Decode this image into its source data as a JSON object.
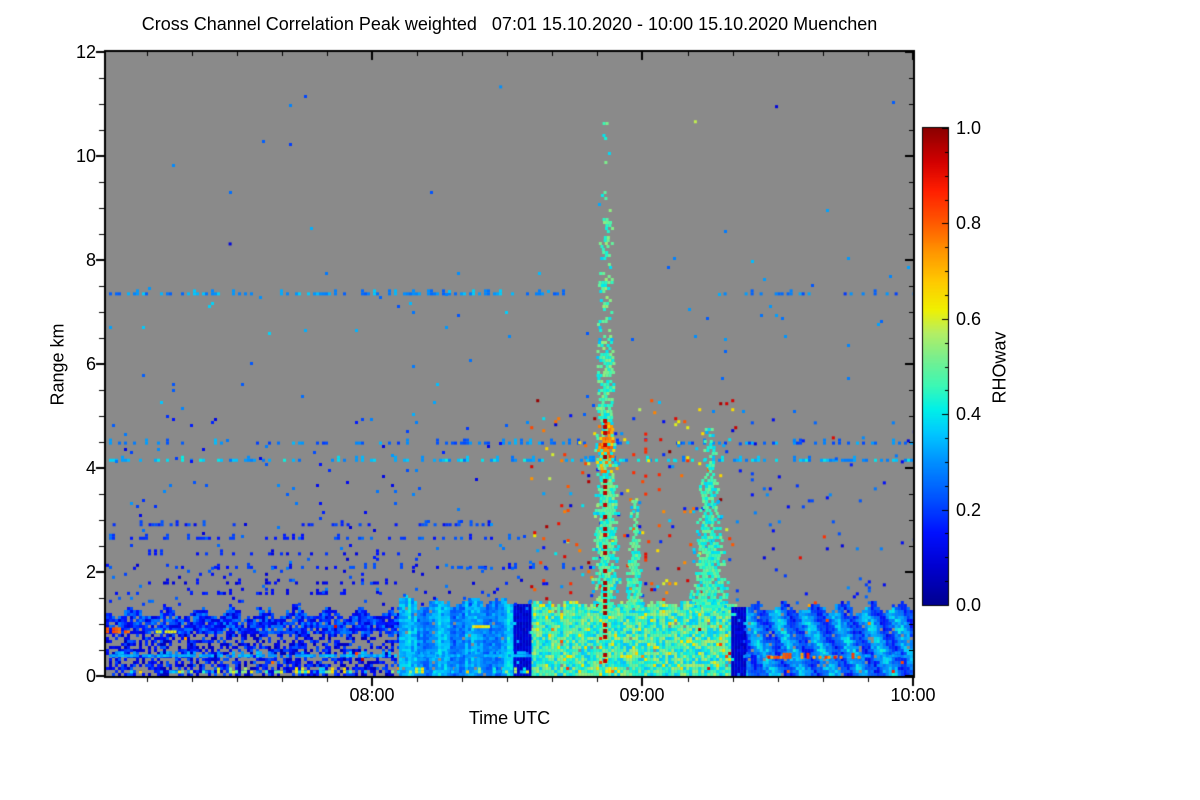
{
  "chart_data": {
    "type": "heatmap",
    "title": "Cross Channel Correlation Peak weighted   07:01 15.10.2020 - 10:00 15.10.2020 Muenchen",
    "xlabel": "Time UTC",
    "ylabel": "Range km",
    "time_start_utc": "07:01",
    "time_end_utc": "10:00",
    "date": "15.10.2020",
    "station": "Muenchen",
    "x_domain_hours": [
      7.0167,
      10.0
    ],
    "y_domain_km": [
      0,
      12
    ],
    "x_ticks": [
      {
        "t": 8.0,
        "label": "08:00"
      },
      {
        "t": 9.0,
        "label": "09:00"
      },
      {
        "t": 10.0,
        "label": "10:00"
      }
    ],
    "x_minor_step_hours": 0.1666667,
    "y_ticks": [
      {
        "v": 0,
        "label": "0"
      },
      {
        "v": 2,
        "label": "2"
      },
      {
        "v": 4,
        "label": "4"
      },
      {
        "v": 6,
        "label": "6"
      },
      {
        "v": 8,
        "label": "8"
      },
      {
        "v": 10,
        "label": "10"
      },
      {
        "v": 12,
        "label": "12"
      }
    ],
    "y_minor_step": 0.5,
    "grid": false,
    "no_data_color": "#8a8a8a",
    "frame_color": "#000000",
    "seed": 1337,
    "colorbar": {
      "label": "RHOwav",
      "min": 0.0,
      "max": 1.0,
      "ticks": [
        {
          "v": 0.0,
          "label": "0.0"
        },
        {
          "v": 0.2,
          "label": "0.2"
        },
        {
          "v": 0.4,
          "label": "0.4"
        },
        {
          "v": 0.6,
          "label": "0.6"
        },
        {
          "v": 0.8,
          "label": "0.8"
        },
        {
          "v": 1.0,
          "label": "1.0"
        }
      ],
      "minor_step": 0.05,
      "stops": [
        [
          0.0,
          "#000090"
        ],
        [
          0.08,
          "#0000D0"
        ],
        [
          0.15,
          "#0010FF"
        ],
        [
          0.22,
          "#0050FF"
        ],
        [
          0.3,
          "#0090FF"
        ],
        [
          0.36,
          "#00C8FF"
        ],
        [
          0.41,
          "#00F0E8"
        ],
        [
          0.46,
          "#3CF8B4"
        ],
        [
          0.52,
          "#7CEE8C"
        ],
        [
          0.57,
          "#B4EE64"
        ],
        [
          0.62,
          "#F0F000"
        ],
        [
          0.68,
          "#FFC800"
        ],
        [
          0.74,
          "#FF9600"
        ],
        [
          0.8,
          "#FF5A00"
        ],
        [
          0.87,
          "#FF1E00"
        ],
        [
          0.93,
          "#D20000"
        ],
        [
          1.0,
          "#8C0000"
        ]
      ]
    },
    "features": [
      {
        "kind": "layer",
        "name": "boundary-layer-early-dark-blue",
        "style": "patchy",
        "t": [
          7.0167,
          8.1
        ],
        "hTop": 1.2,
        "topAmp": 0.1,
        "waves": 9,
        "density": 0.88,
        "lowSplit": 0.78,
        "lowFactor": 0.58,
        "val": 0.14,
        "spread": 0.2,
        "hotFrac": 0.004
      },
      {
        "kind": "layer",
        "name": "boundary-layer-fan-cyan",
        "style": "fan",
        "t": [
          8.1,
          8.585
        ],
        "hTop": 1.4,
        "topAmp": 0.07,
        "waves": 4,
        "density": 0.97,
        "val": 0.31,
        "spread": 0.1,
        "hotFrac": 0.002
      },
      {
        "kind": "layer",
        "name": "boundary-layer-convective-green",
        "style": "speckle",
        "t": [
          8.585,
          9.345
        ],
        "hTop": 1.38,
        "topAmp": 0.05,
        "waves": 7,
        "density": 0.99,
        "val": 0.46,
        "spread": 0.22,
        "hotFrac": 0.012,
        "warmFrac": 0.05,
        "warmVal": 0.63
      },
      {
        "kind": "layer",
        "name": "boundary-layer-late-wavy-blue",
        "style": "wavy",
        "t": [
          9.345,
          10.0
        ],
        "hTop": 1.3,
        "topAmp": 0.09,
        "waves": 6,
        "density": 0.95,
        "val": 0.27,
        "spread": 0.14,
        "hotFrac": 0.003
      },
      {
        "kind": "column",
        "name": "dark-edge-0835",
        "t": [
          8.523,
          8.585
        ],
        "h": [
          0,
          1.36
        ],
        "val": 0.08,
        "spread": 0.06,
        "density": 0.97
      },
      {
        "kind": "column",
        "name": "dark-edge-0920",
        "t": [
          9.328,
          9.378
        ],
        "h": [
          0,
          1.3
        ],
        "val": 0.08,
        "spread": 0.06,
        "density": 0.92
      },
      {
        "kind": "row",
        "h": 7.32,
        "t": [
          7.0167,
          8.72
        ],
        "val": 0.3,
        "spread": 0.14,
        "density": 0.45
      },
      {
        "kind": "row",
        "h": 7.32,
        "t": [
          9.3,
          10.0
        ],
        "val": 0.26,
        "spread": 0.14,
        "density": 0.36
      },
      {
        "kind": "row",
        "h": 4.45,
        "t": [
          7.0167,
          10.0
        ],
        "val": 0.27,
        "spread": 0.16,
        "density": 0.3
      },
      {
        "kind": "row",
        "h": 4.12,
        "t": [
          7.0167,
          10.0
        ],
        "val": 0.34,
        "spread": 0.16,
        "density": 0.46
      },
      {
        "kind": "row",
        "h": 2.88,
        "t": [
          7.03,
          8.45
        ],
        "val": 0.18,
        "spread": 0.12,
        "density": 0.28
      },
      {
        "kind": "row",
        "h": 2.62,
        "t": [
          7.0167,
          8.62
        ],
        "val": 0.21,
        "spread": 0.14,
        "density": 0.3
      },
      {
        "kind": "row",
        "h": 2.32,
        "t": [
          7.05,
          8.3
        ],
        "val": 0.15,
        "spread": 0.1,
        "density": 0.17
      },
      {
        "kind": "row",
        "h": 2.06,
        "t": [
          7.0167,
          9.0
        ],
        "val": 0.18,
        "spread": 0.12,
        "density": 0.2
      },
      {
        "kind": "row",
        "h": 1.76,
        "t": [
          7.0167,
          8.1
        ],
        "val": 0.12,
        "spread": 0.08,
        "density": 0.24
      },
      {
        "kind": "row",
        "h": 1.56,
        "t": [
          7.0167,
          8.05
        ],
        "val": 0.15,
        "spread": 0.1,
        "density": 0.28
      },
      {
        "kind": "row",
        "h": 0.36,
        "t": [
          7.0167,
          8.585
        ],
        "val": 0.33,
        "spread": 0.08,
        "density": 0.85
      },
      {
        "kind": "row",
        "h": 0.36,
        "t": [
          9.378,
          9.95
        ],
        "val": 0.3,
        "spread": 0.1,
        "density": 0.5
      },
      {
        "kind": "row",
        "h": 0.33,
        "t": [
          9.44,
          9.8
        ],
        "val": 0.8,
        "spread": 0.18,
        "density": 0.45
      },
      {
        "kind": "row",
        "h": 0.82,
        "t": [
          7.0167,
          7.1
        ],
        "val": 0.82,
        "spread": 0.12,
        "density": 0.92
      },
      {
        "kind": "row",
        "h": 0.82,
        "t": [
          7.2,
          7.27
        ],
        "val": 0.62,
        "spread": 0.06,
        "density": 0.92
      },
      {
        "kind": "row",
        "h": 0.92,
        "t": [
          8.37,
          8.43
        ],
        "val": 0.63,
        "spread": 0.08,
        "density": 0.92
      },
      {
        "kind": "row",
        "h": 0.05,
        "t": [
          7.0167,
          8.585
        ],
        "val": 0.48,
        "spread": 0.4,
        "density": 0.45
      },
      {
        "kind": "speckle",
        "t": [
          7.0167,
          8.585
        ],
        "h": [
          1.35,
          2.25
        ],
        "density": 0.035,
        "val": 0.18,
        "spread": 0.2
      },
      {
        "kind": "speckle",
        "t": [
          7.0167,
          8.585
        ],
        "h": [
          2.25,
          5.0
        ],
        "density": 0.012,
        "val": 0.2,
        "spread": 0.22
      },
      {
        "kind": "speckle",
        "t": [
          8.585,
          9.345
        ],
        "h": [
          1.4,
          5.3
        ],
        "density": 0.045,
        "mix": [
          [
            0.15,
            0.22
          ],
          [
            0.35,
            0.18
          ],
          [
            0.62,
            0.18
          ],
          [
            0.8,
            0.24
          ],
          [
            0.95,
            0.18
          ]
        ]
      },
      {
        "kind": "speckle",
        "t": [
          9.345,
          10.0
        ],
        "h": [
          1.32,
          5.0
        ],
        "density": 0.022,
        "val": 0.2,
        "spread": 0.2,
        "hotFrac": 0.05
      },
      {
        "kind": "speckle",
        "t": [
          7.0167,
          10.0
        ],
        "h": [
          5.0,
          8.0
        ],
        "density": 0.0045,
        "val": 0.3,
        "spread": 0.16
      },
      {
        "kind": "speckle",
        "t": [
          7.0167,
          10.0
        ],
        "h": [
          8.0,
          11.8
        ],
        "density": 0.0009,
        "val": 0.26,
        "spread": 0.16
      },
      {
        "kind": "plume",
        "name": "main-plume-0852",
        "t": 8.862,
        "h": [
          1.25,
          10.75
        ],
        "hw": [
          0.04,
          0.01
        ],
        "val": 0.47,
        "spread": 0.16,
        "densProfile": [
          [
            5.0,
            0.92
          ],
          [
            6.4,
            0.72
          ],
          [
            8.8,
            0.45
          ],
          [
            10.75,
            0.15
          ]
        ],
        "band": {
          "h": [
            3.85,
            4.85
          ],
          "val": 0.74,
          "spread": 0.18,
          "frac": 0.55
        }
      },
      {
        "kind": "plume",
        "name": "second-plume-0858",
        "t": 8.968,
        "h": [
          1.25,
          3.35
        ],
        "hw": [
          0.03,
          0.009
        ],
        "val": 0.46,
        "spread": 0.14,
        "densProfile": [
          [
            2.6,
            0.9
          ],
          [
            3.35,
            0.6
          ]
        ]
      },
      {
        "kind": "plume",
        "name": "third-plume-0915",
        "t": 9.245,
        "h": [
          1.25,
          4.78
        ],
        "hw": [
          0.062,
          0.01
        ],
        "val": 0.45,
        "spread": 0.14,
        "densProfile": [
          [
            2.2,
            0.92
          ],
          [
            3.8,
            0.8
          ],
          [
            4.78,
            0.55
          ]
        ]
      },
      {
        "kind": "vline",
        "name": "hard-target-core",
        "t": 8.862,
        "h": [
          0.25,
          4.95
        ],
        "val": 0.96,
        "spread": 0.05,
        "density": 0.6,
        "w": 4,
        "step": 2,
        "size": 4
      },
      {
        "kind": "vline",
        "t": 8.725,
        "h": [
          2.0,
          4.2
        ],
        "val": 0.82,
        "spread": 0.1,
        "density": 0.13,
        "w": 3
      },
      {
        "kind": "vline",
        "t": 9.012,
        "h": [
          2.2,
          4.7
        ],
        "val": 0.88,
        "spread": 0.08,
        "density": 0.22,
        "w": 3
      },
      {
        "kind": "vline",
        "t": 9.062,
        "h": [
          2.4,
          4.4
        ],
        "val": 0.85,
        "spread": 0.1,
        "density": 0.14,
        "w": 3
      },
      {
        "kind": "dots",
        "points": [
          [
            9.49,
            10.92,
            0.1
          ],
          [
            9.19,
            10.63,
            0.58
          ],
          [
            7.47,
            8.28,
            0.1
          ],
          [
            8.47,
            11.3,
            0.3
          ]
        ]
      }
    ]
  }
}
